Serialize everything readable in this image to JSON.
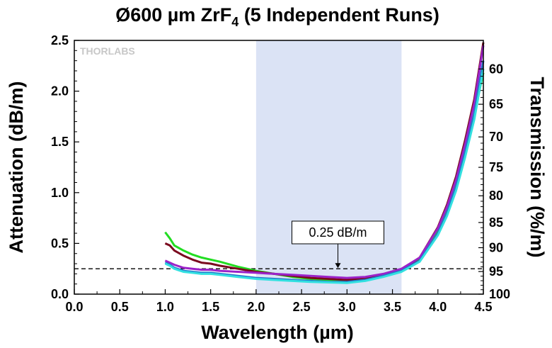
{
  "chart_data": {
    "type": "line",
    "title": {
      "main": "Ø600 µm ZrF",
      "sub": "4",
      "rest": " (5 Independent Runs)"
    },
    "xlabel": "Wavelength (µm)",
    "ylabel": "Attenuation (dB/m)",
    "y2label": "Transmission (%/m)",
    "xlim": [
      0.0,
      4.5
    ],
    "ylim": [
      0.0,
      2.5
    ],
    "x_ticks": [
      "0.0",
      "0.5",
      "1.0",
      "1.5",
      "2.0",
      "2.5",
      "3.0",
      "3.5",
      "4.0",
      "4.5"
    ],
    "y_ticks": [
      "0.0",
      "0.5",
      "1.0",
      "1.5",
      "2.0",
      "2.5"
    ],
    "y2_ticks": [
      "60",
      "65",
      "70",
      "75",
      "80",
      "85",
      "90",
      "95",
      "100"
    ],
    "shaded_band": [
      2.0,
      3.6
    ],
    "shaded_color": "#dbe3f5",
    "reference_line": {
      "y": 0.25,
      "label": "0.25 dB/m"
    },
    "logo_text": "THORLABS",
    "series": [
      {
        "color": "#22dd22",
        "x": [
          1.0,
          1.05,
          1.1,
          1.2,
          1.3,
          1.4,
          1.5,
          1.6,
          1.8,
          2.0,
          2.2,
          2.4,
          2.6,
          2.8,
          3.0,
          3.2,
          3.4,
          3.6,
          3.8,
          4.0,
          4.1,
          4.2,
          4.3,
          4.4,
          4.5
        ],
        "y": [
          0.61,
          0.55,
          0.48,
          0.43,
          0.39,
          0.36,
          0.34,
          0.32,
          0.27,
          0.23,
          0.2,
          0.17,
          0.15,
          0.14,
          0.13,
          0.15,
          0.19,
          0.24,
          0.35,
          0.62,
          0.82,
          1.08,
          1.42,
          1.78,
          2.18
        ]
      },
      {
        "color": "#7a0a1e",
        "x": [
          1.0,
          1.05,
          1.1,
          1.2,
          1.3,
          1.4,
          1.5,
          1.6,
          1.8,
          2.0,
          2.2,
          2.4,
          2.6,
          2.8,
          3.0,
          3.2,
          3.4,
          3.6,
          3.8,
          4.0,
          4.1,
          4.2,
          4.3,
          4.4,
          4.5
        ],
        "y": [
          0.5,
          0.48,
          0.43,
          0.38,
          0.34,
          0.31,
          0.3,
          0.28,
          0.25,
          0.22,
          0.2,
          0.18,
          0.16,
          0.15,
          0.14,
          0.16,
          0.19,
          0.24,
          0.36,
          0.66,
          0.88,
          1.16,
          1.52,
          1.92,
          2.48
        ]
      },
      {
        "color": "#9b22c9",
        "x": [
          1.0,
          1.05,
          1.1,
          1.2,
          1.3,
          1.4,
          1.5,
          1.6,
          1.8,
          2.0,
          2.2,
          2.4,
          2.6,
          2.8,
          3.0,
          3.2,
          3.4,
          3.6,
          3.8,
          4.0,
          4.1,
          4.2,
          4.3,
          4.4,
          4.5
        ],
        "y": [
          0.33,
          0.31,
          0.29,
          0.26,
          0.25,
          0.24,
          0.24,
          0.23,
          0.22,
          0.21,
          0.2,
          0.19,
          0.18,
          0.17,
          0.16,
          0.17,
          0.2,
          0.25,
          0.36,
          0.65,
          0.86,
          1.13,
          1.48,
          1.88,
          2.45
        ]
      },
      {
        "color": "#2277cc",
        "x": [
          1.0,
          1.05,
          1.1,
          1.2,
          1.3,
          1.4,
          1.5,
          1.6,
          1.8,
          2.0,
          2.2,
          2.4,
          2.6,
          2.8,
          3.0,
          3.2,
          3.4,
          3.6,
          3.8,
          4.0,
          4.1,
          4.2,
          4.3,
          4.4,
          4.5
        ],
        "y": [
          0.31,
          0.29,
          0.26,
          0.23,
          0.22,
          0.21,
          0.21,
          0.2,
          0.18,
          0.16,
          0.15,
          0.14,
          0.13,
          0.12,
          0.12,
          0.14,
          0.18,
          0.23,
          0.33,
          0.6,
          0.8,
          1.06,
          1.4,
          1.78,
          2.3
        ]
      },
      {
        "color": "#33e0e0",
        "x": [
          1.0,
          1.05,
          1.1,
          1.2,
          1.3,
          1.4,
          1.5,
          1.6,
          1.8,
          2.0,
          2.2,
          2.4,
          2.6,
          2.8,
          3.0,
          3.2,
          3.4,
          3.6,
          3.8,
          4.0,
          4.1,
          4.2,
          4.3,
          4.4,
          4.5
        ],
        "y": [
          0.3,
          0.28,
          0.25,
          0.22,
          0.21,
          0.2,
          0.2,
          0.19,
          0.17,
          0.15,
          0.14,
          0.13,
          0.12,
          0.115,
          0.11,
          0.13,
          0.17,
          0.22,
          0.32,
          0.58,
          0.77,
          1.02,
          1.35,
          1.72,
          2.22
        ]
      }
    ]
  }
}
